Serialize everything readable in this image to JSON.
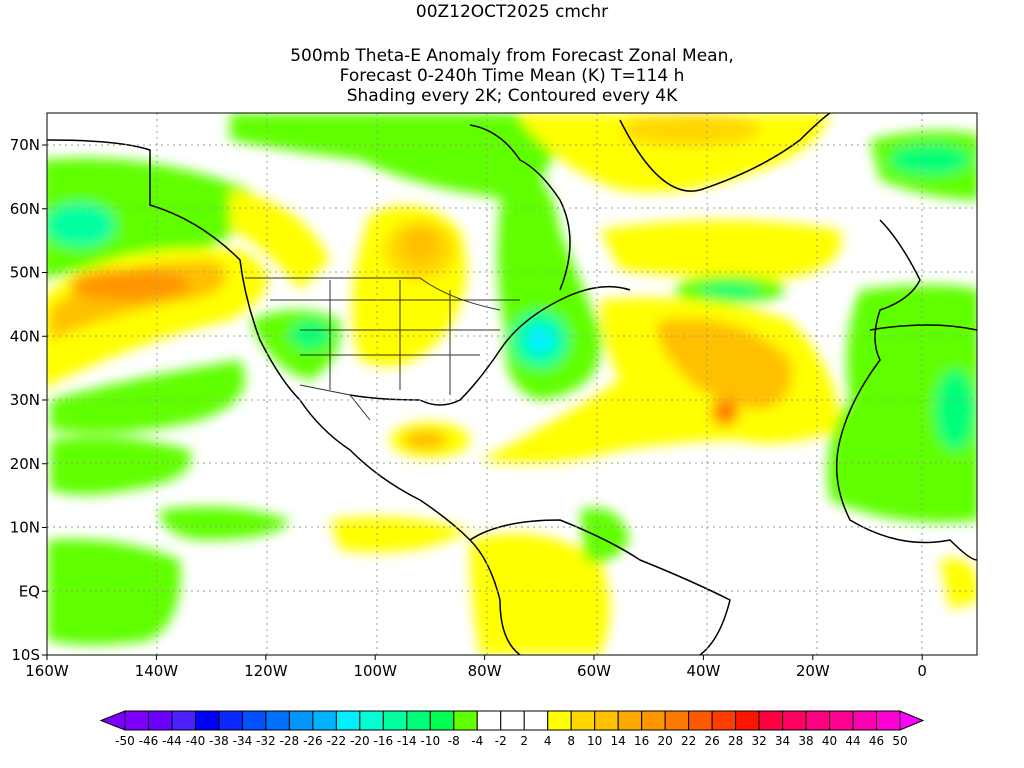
{
  "title": {
    "line1": "00Z12OCT2025 cmchr",
    "line2": "500mb Theta-E Anomaly from Forecast Zonal Mean,",
    "line3": "Forecast 0-240h Time Mean (K) T=114 h",
    "line4": "Shading every 2K; Contoured every 4K"
  },
  "map": {
    "lat_labels": [
      "70N",
      "60N",
      "50N",
      "40N",
      "30N",
      "20N",
      "10N",
      "EQ",
      "10S"
    ],
    "lon_labels": [
      "160W",
      "140W",
      "120W",
      "100W",
      "80W",
      "60W",
      "40W",
      "20W",
      "0"
    ]
  },
  "colorbar": {
    "labels": [
      "-50",
      "-46",
      "-44",
      "-40",
      "-38",
      "-34",
      "-32",
      "-28",
      "-26",
      "-22",
      "-20",
      "-16",
      "-14",
      "-10",
      "-8",
      "-4",
      "-2",
      "2",
      "4",
      "8",
      "10",
      "14",
      "16",
      "20",
      "22",
      "26",
      "28",
      "32",
      "34",
      "38",
      "40",
      "44",
      "46",
      "50"
    ],
    "colors": [
      "#8000ff",
      "#6a00ff",
      "#4a20ff",
      "#0000ff",
      "#0a28ff",
      "#0050ff",
      "#0070ff",
      "#0096ff",
      "#00b4ff",
      "#00f0ff",
      "#00ffd2",
      "#00ffa0",
      "#00ff78",
      "#00ff50",
      "#60ff00",
      "#ffffff",
      "#ffffff",
      "#ffffff",
      "#ffff00",
      "#ffd800",
      "#ffc000",
      "#ffa800",
      "#ff9600",
      "#ff7800",
      "#ff5a00",
      "#ff3c00",
      "#ff1400",
      "#ff0040",
      "#ff0060",
      "#ff0080",
      "#ff0090",
      "#ff00b0",
      "#ff00d8"
    ],
    "low_arrow_color": "#8000ff",
    "high_arrow_color": "#ff00ff"
  }
}
